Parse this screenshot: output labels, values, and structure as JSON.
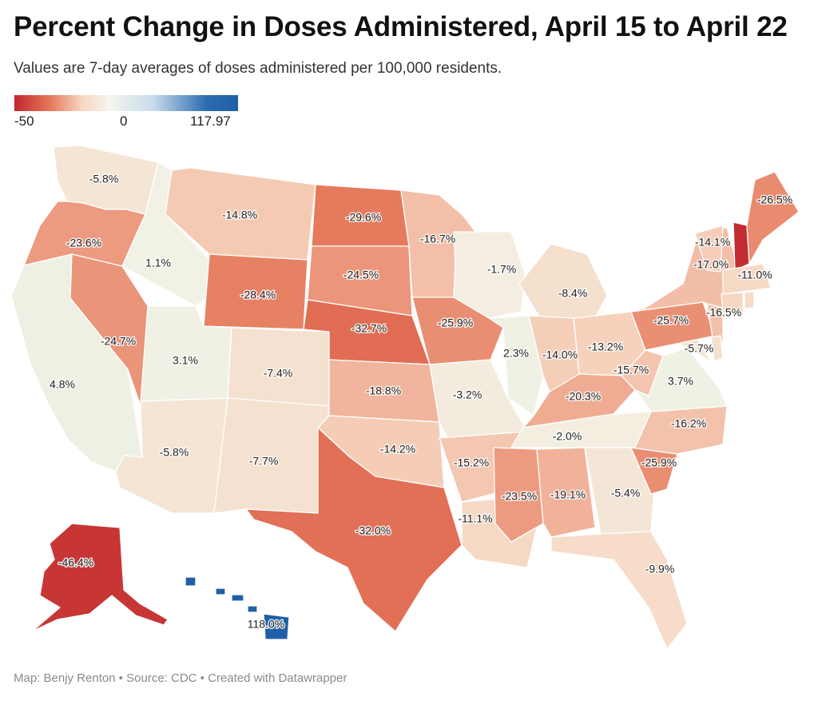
{
  "header": {
    "title": "Percent Change in Doses Administered, April 15 to April 22",
    "subtitle": "Values are 7-day averages of doses administered per 100,000 residents."
  },
  "legend": {
    "min_label": "-50",
    "mid_label": "0",
    "max_label": "117.97",
    "colors": [
      "#c0272d",
      "#e5785a",
      "#f7d6c1",
      "#f5f5ee",
      "#c9dbec",
      "#2b6cb0",
      "#1f5fa8"
    ]
  },
  "footer": {
    "text": "Map: Benjy Renton • Source: CDC • Created with Datawrapper"
  },
  "map_data": {
    "scale": {
      "min": -50,
      "mid": 0,
      "max": 117.97
    },
    "states": [
      {
        "id": "WA",
        "value": -5.8,
        "label": "-5.8%"
      },
      {
        "id": "OR",
        "value": -23.6,
        "label": "-23.6%"
      },
      {
        "id": "CA",
        "value": 4.8,
        "label": "4.8%"
      },
      {
        "id": "ID",
        "value": 1.1,
        "label": "1.1%"
      },
      {
        "id": "NV",
        "value": -24.7,
        "label": "-24.7%"
      },
      {
        "id": "MT",
        "value": -14.8,
        "label": "-14.8%"
      },
      {
        "id": "WY",
        "value": -28.4,
        "label": "-28.4%"
      },
      {
        "id": "UT",
        "value": 3.1,
        "label": "3.1%"
      },
      {
        "id": "AZ",
        "value": -5.8,
        "label": "-5.8%"
      },
      {
        "id": "CO",
        "value": -7.4,
        "label": "-7.4%"
      },
      {
        "id": "NM",
        "value": -7.7,
        "label": "-7.7%"
      },
      {
        "id": "ND",
        "value": -29.6,
        "label": "-29.6%"
      },
      {
        "id": "SD",
        "value": -24.5,
        "label": "-24.5%"
      },
      {
        "id": "NE",
        "value": -32.7,
        "label": "-32.7%"
      },
      {
        "id": "KS",
        "value": -18.8,
        "label": "-18.8%"
      },
      {
        "id": "OK",
        "value": -14.2,
        "label": "-14.2%"
      },
      {
        "id": "TX",
        "value": -32.0,
        "label": "-32.0%"
      },
      {
        "id": "MN",
        "value": -16.7,
        "label": "-16.7%"
      },
      {
        "id": "IA",
        "value": -25.9,
        "label": "-25.9%"
      },
      {
        "id": "MO",
        "value": -3.2,
        "label": "-3.2%"
      },
      {
        "id": "AR",
        "value": -15.2,
        "label": "-15.2%"
      },
      {
        "id": "LA",
        "value": -11.1,
        "label": "-11.1%"
      },
      {
        "id": "WI",
        "value": -1.7,
        "label": "-1.7%"
      },
      {
        "id": "IL",
        "value": 2.3,
        "label": "2.3%"
      },
      {
        "id": "MI",
        "value": -8.4,
        "label": "-8.4%"
      },
      {
        "id": "IN",
        "value": -14.0,
        "label": "-14.0%"
      },
      {
        "id": "OH",
        "value": -13.2,
        "label": "-13.2%"
      },
      {
        "id": "KY",
        "value": -20.3,
        "label": "-20.3%"
      },
      {
        "id": "TN",
        "value": -2.0,
        "label": "-2.0%"
      },
      {
        "id": "MS",
        "value": -23.5,
        "label": "-23.5%"
      },
      {
        "id": "AL",
        "value": -19.1,
        "label": "-19.1%"
      },
      {
        "id": "GA",
        "value": -5.4,
        "label": "-5.4%"
      },
      {
        "id": "FL",
        "value": -9.9,
        "label": "-9.9%"
      },
      {
        "id": "SC",
        "value": -25.9,
        "label": "-25.9%"
      },
      {
        "id": "NC",
        "value": -16.2,
        "label": "-16.2%"
      },
      {
        "id": "VA",
        "value": 3.7,
        "label": "3.7%"
      },
      {
        "id": "WV",
        "value": -15.7,
        "label": "-15.7%"
      },
      {
        "id": "MD",
        "value": -5.7,
        "label": "-5.7%"
      },
      {
        "id": "PA",
        "value": -25.7,
        "label": "-25.7%"
      },
      {
        "id": "NJ",
        "value": -16.5,
        "label": "-16.5%"
      },
      {
        "id": "NY",
        "value": -17.0,
        "label": "-17.0%"
      },
      {
        "id": "VT",
        "value": -14.1,
        "label": "-14.1%"
      },
      {
        "id": "NH",
        "value": -49.0,
        "label": ""
      },
      {
        "id": "MA",
        "value": -11.0,
        "label": "-11.0%"
      },
      {
        "id": "CT",
        "value": -12.0,
        "label": ""
      },
      {
        "id": "RI",
        "value": -10.0,
        "label": ""
      },
      {
        "id": "DE",
        "value": -8.0,
        "label": ""
      },
      {
        "id": "ME",
        "value": -26.5,
        "label": "-26.5%"
      },
      {
        "id": "AK",
        "value": -46.4,
        "label": "-46.4%"
      },
      {
        "id": "HI",
        "value": 118.0,
        "label": "118.0%"
      }
    ]
  }
}
